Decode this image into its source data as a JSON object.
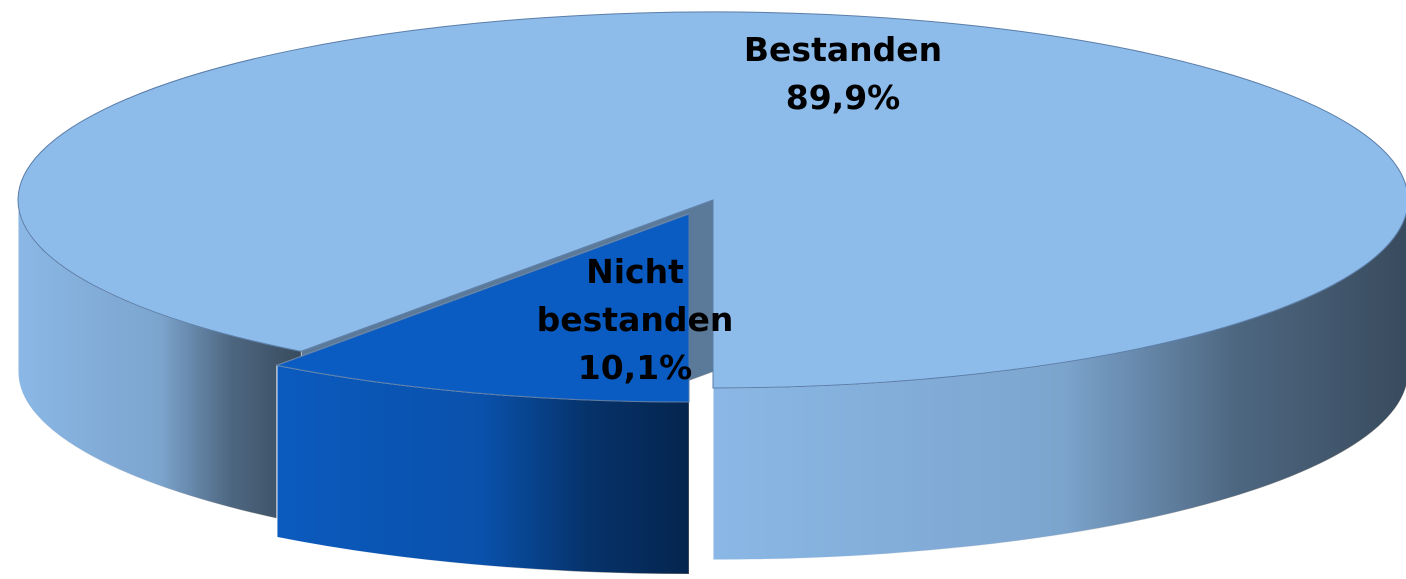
{
  "chart_data": {
    "type": "pie",
    "categories": [
      "Bestanden",
      "Nicht bestanden"
    ],
    "values": [
      89.9,
      10.1
    ],
    "value_labels": [
      "89,9%",
      "10,1%"
    ],
    "colors": [
      "#8dbbea",
      "#0b5cc2"
    ]
  }
}
